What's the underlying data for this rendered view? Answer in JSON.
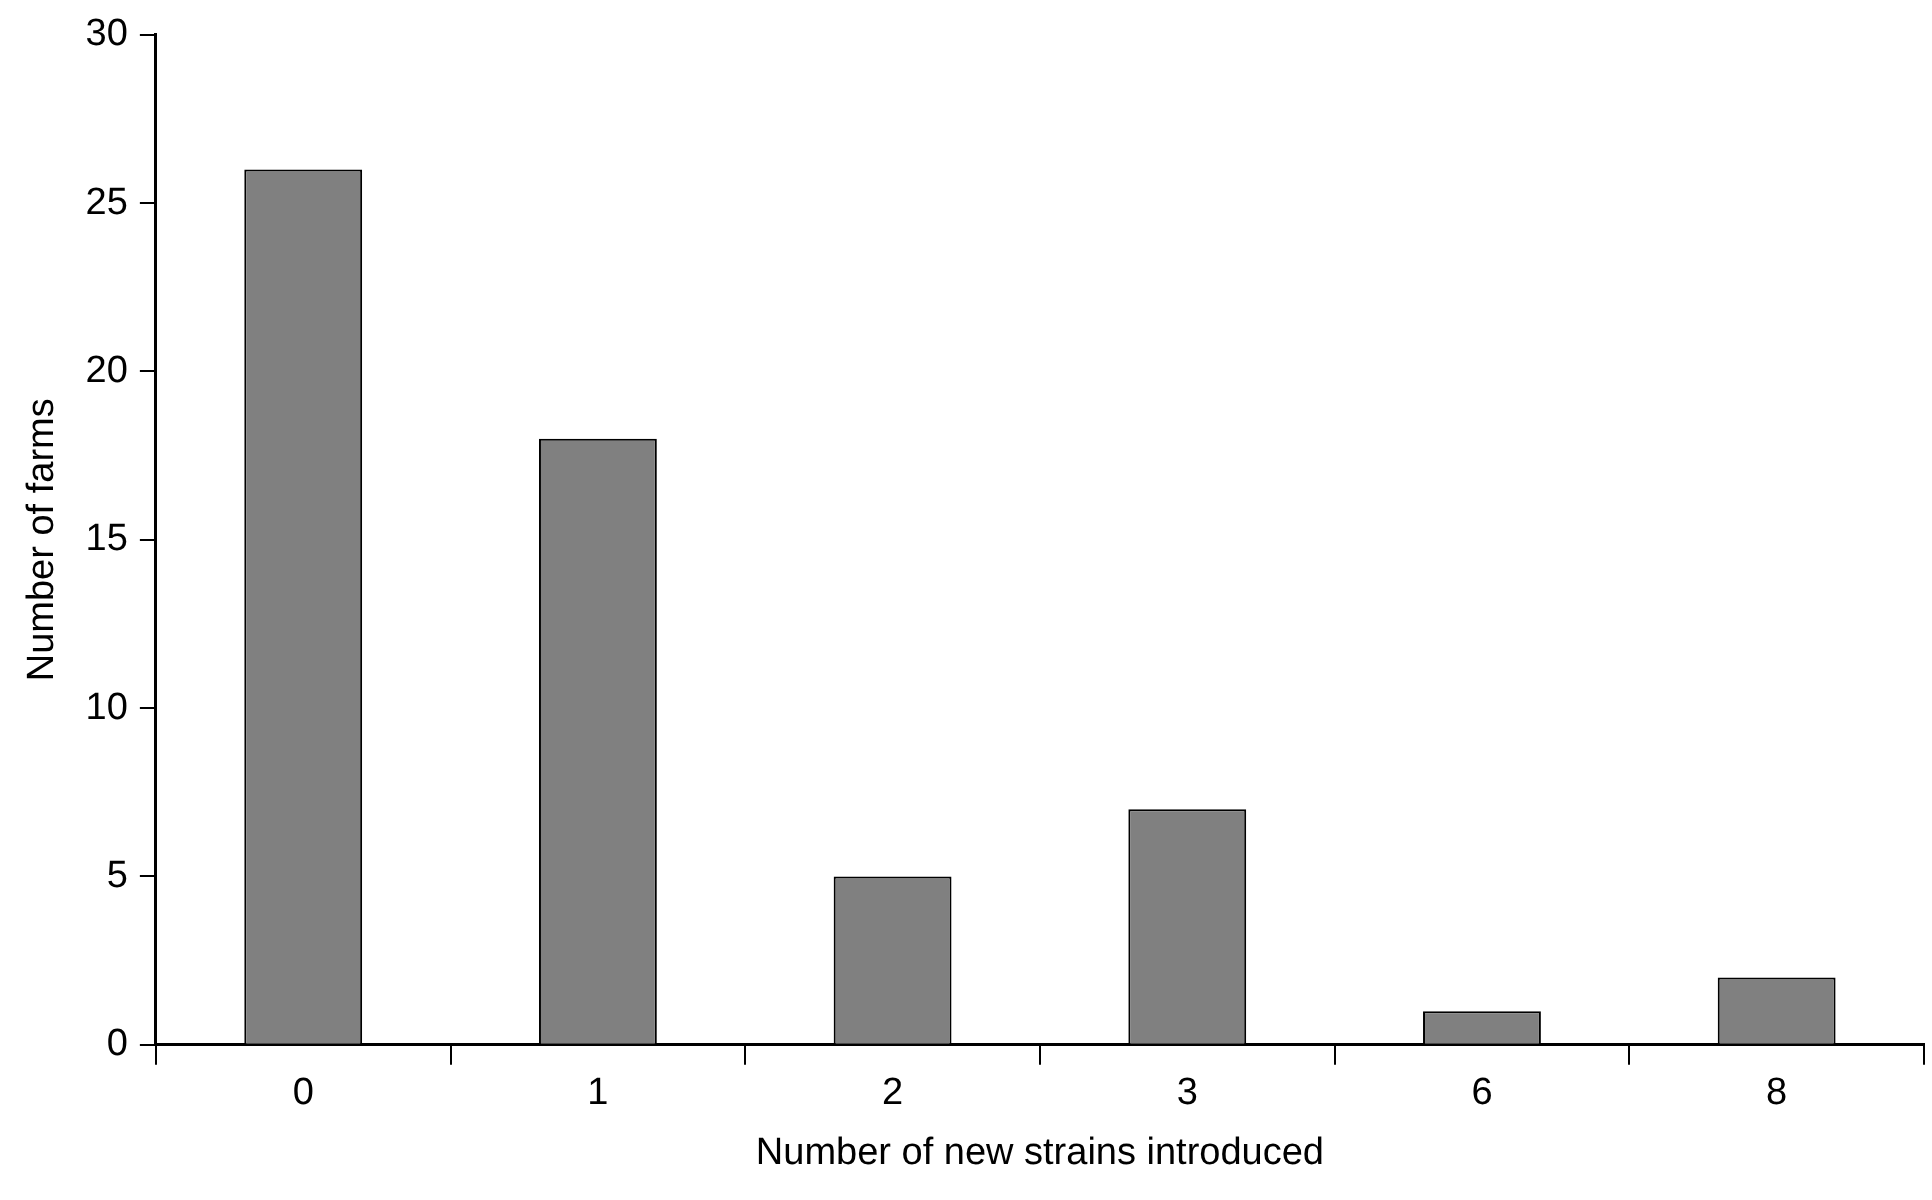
{
  "chart_data": {
    "type": "bar",
    "xlabel": "Number of new strains introduced",
    "ylabel": "Number of farms",
    "categories": [
      "0",
      "1",
      "2",
      "3",
      "6",
      "8"
    ],
    "values": [
      26,
      18,
      5,
      7,
      1,
      2
    ],
    "color": "#808080",
    "ylim": [
      0,
      30
    ],
    "yticks": [
      0,
      5,
      10,
      15,
      20,
      25,
      30
    ],
    "grid": false,
    "legend": false
  }
}
